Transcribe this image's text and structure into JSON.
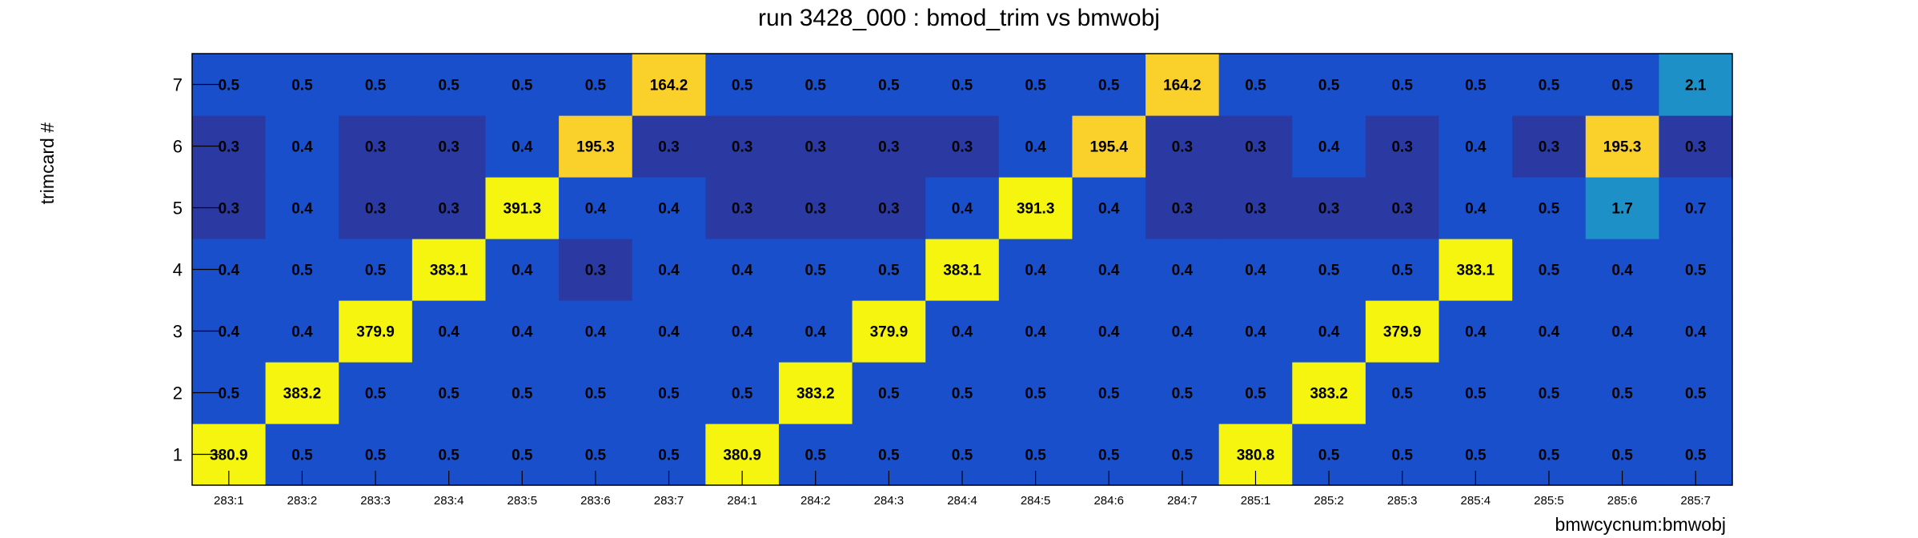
{
  "chart_data": {
    "type": "heatmap",
    "title": "run 3428_000 : bmod_trim vs bmwobj",
    "xlabel": "bmwcycnum:bmwobj",
    "ylabel": "trimcard #",
    "x_categories": [
      "283:1",
      "283:2",
      "283:3",
      "283:4",
      "283:5",
      "283:6",
      "283:7",
      "284:1",
      "284:2",
      "284:3",
      "284:4",
      "284:5",
      "284:6",
      "284:7",
      "285:1",
      "285:2",
      "285:3",
      "285:4",
      "285:5",
      "285:6",
      "285:7"
    ],
    "y_categories": [
      "1",
      "2",
      "3",
      "4",
      "5",
      "6",
      "7"
    ],
    "values": [
      [
        "380.9",
        "0.5",
        "0.5",
        "0.5",
        "0.5",
        "0.5",
        "0.5",
        "380.9",
        "0.5",
        "0.5",
        "0.5",
        "0.5",
        "0.5",
        "0.5",
        "380.8",
        "0.5",
        "0.5",
        "0.5",
        "0.5",
        "0.5",
        "0.5"
      ],
      [
        "0.5",
        "383.2",
        "0.5",
        "0.5",
        "0.5",
        "0.5",
        "0.5",
        "0.5",
        "383.2",
        "0.5",
        "0.5",
        "0.5",
        "0.5",
        "0.5",
        "0.5",
        "383.2",
        "0.5",
        "0.5",
        "0.5",
        "0.5",
        "0.5"
      ],
      [
        "0.4",
        "0.4",
        "379.9",
        "0.4",
        "0.4",
        "0.4",
        "0.4",
        "0.4",
        "0.4",
        "379.9",
        "0.4",
        "0.4",
        "0.4",
        "0.4",
        "0.4",
        "0.4",
        "379.9",
        "0.4",
        "0.4",
        "0.4",
        "0.4"
      ],
      [
        "0.4",
        "0.5",
        "0.5",
        "383.1",
        "0.4",
        "0.3",
        "0.4",
        "0.4",
        "0.5",
        "0.5",
        "383.1",
        "0.4",
        "0.4",
        "0.4",
        "0.4",
        "0.5",
        "0.5",
        "383.1",
        "0.5",
        "0.4",
        "0.5"
      ],
      [
        "0.3",
        "0.4",
        "0.3",
        "0.3",
        "391.3",
        "0.4",
        "0.4",
        "0.3",
        "0.3",
        "0.3",
        "0.4",
        "391.3",
        "0.4",
        "0.3",
        "0.3",
        "0.3",
        "0.3",
        "0.4",
        "0.5",
        "1.7",
        "0.7"
      ],
      [
        "0.3",
        "0.4",
        "0.3",
        "0.3",
        "0.4",
        "195.3",
        "0.3",
        "0.3",
        "0.3",
        "0.3",
        "0.3",
        "0.4",
        "195.4",
        "0.3",
        "0.3",
        "0.4",
        "0.3",
        "0.4",
        "0.3",
        "195.3",
        "0.3"
      ],
      [
        "0.5",
        "0.5",
        "0.5",
        "0.5",
        "0.5",
        "0.5",
        "164.2",
        "0.5",
        "0.5",
        "0.5",
        "0.5",
        "0.5",
        "0.5",
        "164.2",
        "0.5",
        "0.5",
        "0.5",
        "0.5",
        "0.5",
        "0.5",
        "2.1"
      ]
    ],
    "colors": {
      "low": "#2b3aa3",
      "mid_low": "#1a4fcc",
      "mid": "#1e90c8",
      "high": "#fad02a",
      "max": "#f5f50f"
    }
  }
}
